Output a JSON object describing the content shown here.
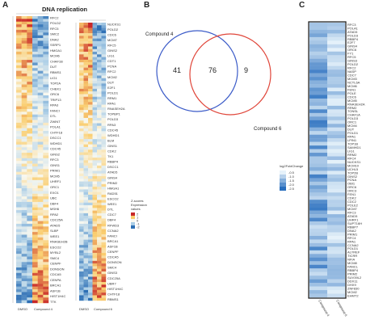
{
  "panel_a": {
    "letter": "A",
    "title": "DNA replication",
    "legend_title_1": "Z-scores",
    "legend_title_2": "Expression",
    "legend_title_3": "values",
    "legend_ticks": [
      "2",
      "1",
      "0",
      "-1",
      "-2"
    ],
    "col_labels_left": [
      "DMSO",
      "Compound 4"
    ],
    "col_labels_right": [
      "DMSO",
      "Compound 6"
    ],
    "genes_left": [
      "RFC2",
      "CDC6",
      "POLD2",
      "NUCKS1",
      "RFC5",
      "ACTL6A",
      "SMC2",
      "POLE",
      "DNA2",
      "RBBP4",
      "SSRP1",
      "GINS4",
      "HMGA1",
      "PRIM2",
      "MCM6",
      "RFC4",
      "CHAF1B",
      "FEN1",
      "DUT",
      "TYMS",
      "RBMS1",
      "CDT1",
      "LIG1",
      "RPA1",
      "TOP2A",
      "RRM1",
      "CHEK1",
      "MCM3",
      "ORC6",
      "GMNN",
      "TRIP13",
      "RAD51",
      "RPA3",
      "UBE2T",
      "FANCI",
      "MSH2",
      "DTL",
      "CCNA2",
      "ZWINT",
      "CLSPN",
      "POLA1",
      "RRM2",
      "CHTF18",
      "HELLS",
      "DSCC1",
      "PCNA",
      "WDHD1",
      "TIMELESS",
      "CDC45",
      "MCM2",
      "GINS2",
      "POLD3",
      "RFC3",
      "CDK2",
      "GINS1",
      "MCM7",
      "PRIM1",
      "MCM4",
      "MCM5",
      "RFWD3",
      "UHRF1",
      "SETD8",
      "ORC1",
      "BLM",
      "EXO1",
      "RAD18",
      "UBC",
      "CDC7",
      "DBF4",
      "E2F1",
      "MSH6",
      "POLD1",
      "RPA2",
      "TONSL",
      "CDC25A",
      "MCM10",
      "ATAD5",
      "NASP",
      "SLBP",
      "GINS3",
      "WEE1",
      "RNASEH2A",
      "RNASEH2B",
      "CHAF1A",
      "ESCO2",
      "TK1",
      "MYBL2",
      "POLQ",
      "SMC4",
      "NCAPD2",
      "CENPF",
      "TOPBP1",
      "DONSON",
      "POLE2",
      "CDCA5",
      "KIAA0101",
      "CENPA",
      "BARD1",
      "BRCA1",
      "FBXO5",
      "ASF1B",
      "UBR7",
      "HIST1H4C",
      "NUP43",
      "TTK"
    ],
    "genes_right": [
      "NUCKS1",
      "RFC3",
      "POLD2",
      "RFC4",
      "CDC6",
      "MCM4",
      "MCM7",
      "PRIM1",
      "RFC5",
      "MCM3",
      "GINS2",
      "ORC6",
      "LIG1",
      "POLA1",
      "CDT1",
      "TYMS",
      "PCNA",
      "RPA2",
      "RFC2",
      "CHAF1A",
      "MCM2",
      "FEN1",
      "DUT",
      "GMNN",
      "E2F1",
      "SSRP1",
      "POLD1",
      "MCM5",
      "RRM1",
      "POLE",
      "RPA1",
      "TOP2A",
      "RNASEH2A",
      "ACTL6A",
      "TOPBP1",
      "CHEK1",
      "POLD3",
      "UHRF1",
      "RPA3",
      "DNA2",
      "CDC45",
      "ORC1",
      "WDHD1",
      "TIMELESS",
      "BLM",
      "CLSPN",
      "GINS1",
      "RRM2",
      "CDK2",
      "MCM10",
      "TK1",
      "ZWINT",
      "RBBP4",
      "HELLS",
      "DSCC1",
      "SMC2",
      "ATAD5",
      "MCM6",
      "GINS4",
      "NASP",
      "PRIM2",
      "CHAF1B",
      "HMGA1",
      "POLQ",
      "RAD51",
      "FBXO5",
      "ESCO2",
      "TONSL",
      "WEE1",
      "SLBP",
      "DTL",
      "MSH2",
      "CDC7",
      "MSH6",
      "DBF4",
      "RAD18",
      "RFWD3",
      "EXO1",
      "CCNA2",
      "UBE2T",
      "FANCI",
      "TRIP13",
      "BRCA1",
      "BARD1",
      "ASF1B",
      "MYBL2",
      "CENPF",
      "KIAA0101",
      "CDCA5",
      "POLE2",
      "DONSON",
      "CENPA",
      "SMC4",
      "NCAPD2",
      "GINS3",
      "RNASEH2B",
      "CDC25A",
      "SETD8",
      "UBR7",
      "NUP43",
      "HIST1H4C",
      "TTK",
      "CHTF18",
      "UBC",
      "RBMS1"
    ]
  },
  "panel_b": {
    "letter": "B",
    "label_left": "Compound 4",
    "label_right": "Compound 6",
    "only_left": "41",
    "overlap": "76",
    "only_right": "9",
    "color_left": "#3b5bc8",
    "color_right": "#e0463a"
  },
  "panel_c": {
    "letter": "C",
    "legend_title": "log2FoldChange",
    "legend_ticks": [
      "-0.5",
      "-1.0",
      "-1.5",
      "-2.0",
      "-2.5"
    ],
    "col_labels": [
      "Compound 4",
      "Compound 6"
    ],
    "genes": [
      "RFC3",
      "POLA1",
      "ATAD5",
      "POLD3",
      "RBBP4",
      "E2F7",
      "GINS4",
      "ORC6",
      "FY1",
      "RFC5",
      "GINS3",
      "POLD2",
      "RFC2",
      "NASP",
      "CDC7",
      "MCM3",
      "NCTL6A",
      "MCM6",
      "FEN1",
      "POLE",
      "CDC6",
      "MCM5",
      "RNASEH2A",
      "RRM2",
      "TONSL",
      "CHAF1A",
      "POLD3",
      "ORC1",
      "MCM4",
      "DUT",
      "POLD1",
      "RPA1",
      "LPIN1",
      "TOP1B",
      "SAMHD1",
      "LIG1",
      "RRM2",
      "RFC4",
      "NUCKS1",
      "MCM10",
      "UCHL5",
      "TOP2B",
      "GINS2",
      "PCNA",
      "OBI1",
      "ORC6",
      "ORC3",
      "FEN1",
      "CDK2",
      "CDC2",
      "POLE2",
      "MCM7",
      "RFC3",
      "ATAD5",
      "UHRF1",
      "SUPT16H",
      "RBBP7",
      "DNA2",
      "PRIM1",
      "RFC4",
      "RPA1",
      "CCNA2",
      "POLD1",
      "ALYREF",
      "TICRR",
      "NFIA",
      "MCM8",
      "FANCL",
      "RBBP4",
      "PRIM2",
      "SUV39L2",
      "DDX11",
      "DHX9",
      "ZNF830",
      "MCM2",
      "EHMT2"
    ]
  }
}
